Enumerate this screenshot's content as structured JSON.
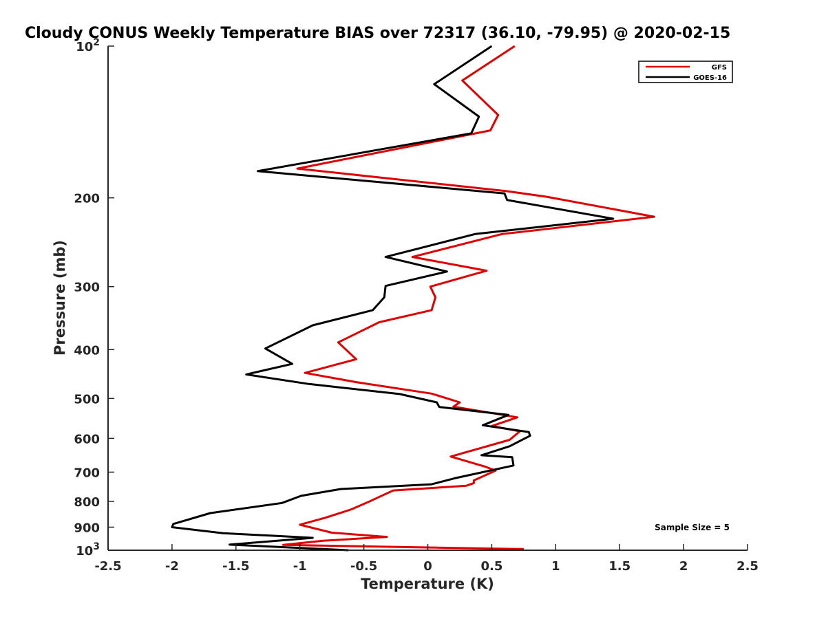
{
  "chart_data": {
    "type": "line",
    "title": "Cloudy CONUS Weekly Temperature BIAS over 72317 (36.10, -79.95) @ 2020-02-15",
    "xlabel": "Temperature (K)",
    "ylabel": "Pressure (mb)",
    "xlim": [
      -2.5,
      2.5
    ],
    "ylim": [
      100,
      1000
    ],
    "yscale": "log",
    "y_reversed": true,
    "grid": false,
    "legend_position": "top-right",
    "x_ticks": [
      {
        "value": -2.5,
        "label": "-2.5"
      },
      {
        "value": -2,
        "label": "-2"
      },
      {
        "value": -1.5,
        "label": "-1.5"
      },
      {
        "value": -1,
        "label": "-1"
      },
      {
        "value": -0.5,
        "label": "-0.5"
      },
      {
        "value": 0,
        "label": "0"
      },
      {
        "value": 0.5,
        "label": "0.5"
      },
      {
        "value": 1,
        "label": "1"
      },
      {
        "value": 1.5,
        "label": "1.5"
      },
      {
        "value": 2,
        "label": "2"
      },
      {
        "value": 2.5,
        "label": "2.5"
      }
    ],
    "y_ticks": [
      {
        "value": 100,
        "label": "10",
        "sup": "2"
      },
      {
        "value": 200,
        "label": "200"
      },
      {
        "value": 300,
        "label": "300"
      },
      {
        "value": 400,
        "label": "400"
      },
      {
        "value": 500,
        "label": "500"
      },
      {
        "value": 600,
        "label": "600"
      },
      {
        "value": 700,
        "label": "700"
      },
      {
        "value": 800,
        "label": "800"
      },
      {
        "value": 900,
        "label": "900"
      },
      {
        "value": 1000,
        "label": "10",
        "sup": "3"
      }
    ],
    "annotation": "Sample Size = 5",
    "series": [
      {
        "name": "GFS",
        "color": "#e00000",
        "points": [
          [
            0.68,
            100
          ],
          [
            0.27,
            117
          ],
          [
            0.55,
            137
          ],
          [
            0.49,
            147
          ],
          [
            -1.02,
            175
          ],
          [
            0.62,
            194
          ],
          [
            0.93,
            199
          ],
          [
            1.77,
            218
          ],
          [
            0.58,
            236
          ],
          [
            -0.12,
            262
          ],
          [
            0.46,
            279
          ],
          [
            0.02,
            300
          ],
          [
            0.06,
            315
          ],
          [
            0.03,
            334
          ],
          [
            -0.38,
            353
          ],
          [
            -0.7,
            387
          ],
          [
            -0.56,
            418
          ],
          [
            -0.96,
            445
          ],
          [
            -0.56,
            464
          ],
          [
            0.03,
            489
          ],
          [
            0.25,
            509
          ],
          [
            0.2,
            519
          ],
          [
            0.7,
            545
          ],
          [
            0.5,
            567
          ],
          [
            0.72,
            581
          ],
          [
            0.64,
            604
          ],
          [
            0.18,
            652
          ],
          [
            0.45,
            683
          ],
          [
            0.53,
            695
          ],
          [
            0.36,
            727
          ],
          [
            0.36,
            736
          ],
          [
            0.3,
            745
          ],
          [
            -0.27,
            761
          ],
          [
            -0.4,
            788
          ],
          [
            -0.45,
            799
          ],
          [
            -0.6,
            830
          ],
          [
            -0.8,
            862
          ],
          [
            -1.0,
            890
          ],
          [
            -0.75,
            923
          ],
          [
            -0.32,
            941
          ],
          [
            -0.82,
            958
          ],
          [
            -1.13,
            976
          ],
          [
            0.75,
            995
          ]
        ]
      },
      {
        "name": "GOES-16",
        "color": "#000000",
        "points": [
          [
            0.5,
            100
          ],
          [
            0.05,
            119
          ],
          [
            0.4,
            138
          ],
          [
            0.34,
            149
          ],
          [
            -1.33,
            177
          ],
          [
            0.6,
            196
          ],
          [
            0.62,
            202
          ],
          [
            1.45,
            220
          ],
          [
            0.37,
            236
          ],
          [
            -0.33,
            262
          ],
          [
            0.15,
            280
          ],
          [
            -0.33,
            299
          ],
          [
            -0.34,
            315
          ],
          [
            -0.43,
            334
          ],
          [
            -0.9,
            358
          ],
          [
            -1.27,
            398
          ],
          [
            -1.06,
            427
          ],
          [
            -1.42,
            448
          ],
          [
            -0.93,
            468
          ],
          [
            -0.22,
            490
          ],
          [
            0.07,
            509
          ],
          [
            0.09,
            520
          ],
          [
            0.63,
            539
          ],
          [
            0.43,
            565
          ],
          [
            0.79,
            583
          ],
          [
            0.8,
            593
          ],
          [
            0.64,
            622
          ],
          [
            0.42,
            648
          ],
          [
            0.66,
            654
          ],
          [
            0.67,
            679
          ],
          [
            0.43,
            700
          ],
          [
            0.21,
            720
          ],
          [
            0.03,
            740
          ],
          [
            -0.68,
            756
          ],
          [
            -0.99,
            780
          ],
          [
            -1.14,
            806
          ],
          [
            -1.7,
            844
          ],
          [
            -1.99,
            887
          ],
          [
            -2.0,
            900
          ],
          [
            -1.6,
            925
          ],
          [
            -0.9,
            945
          ],
          [
            -1.55,
            975
          ],
          [
            -0.62,
            1000
          ]
        ]
      }
    ]
  }
}
